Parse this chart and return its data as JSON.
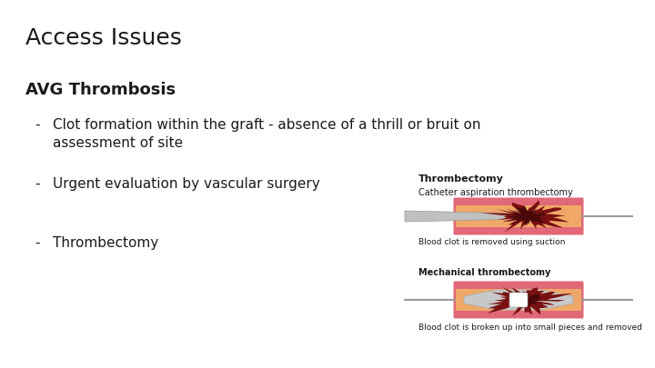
{
  "title": "Access Issues",
  "subtitle": "AVG Thrombosis",
  "bullet1_dash": "-",
  "bullet1_text1": "Clot formation within the graft - absence of a thrill or bruit on",
  "bullet1_text2": "assessment of site",
  "bullet2_dash": "-",
  "bullet2_text": "Urgent evaluation by vascular surgery",
  "bullet3_dash": "-",
  "bullet3_text": "Thrombectomy",
  "img_label_bold": "Thrombectomy",
  "img_label1": "Catheter aspiration thrombectomy",
  "img_caption1": "Blood clot is removed using suction",
  "img_label2": "Mechanical thrombectomy",
  "img_caption2": "Blood clot is broken up into small pieces and removed",
  "bg_color": "#ffffff",
  "text_color": "#1a1a1a",
  "title_fontsize": 18,
  "subtitle_fontsize": 13,
  "bullet_fontsize": 11,
  "vessel_color_outer": "#e06878",
  "vessel_color_inner": "#f0a868",
  "clot_color": "#7a1010",
  "catheter_color": "#b8b8b8"
}
